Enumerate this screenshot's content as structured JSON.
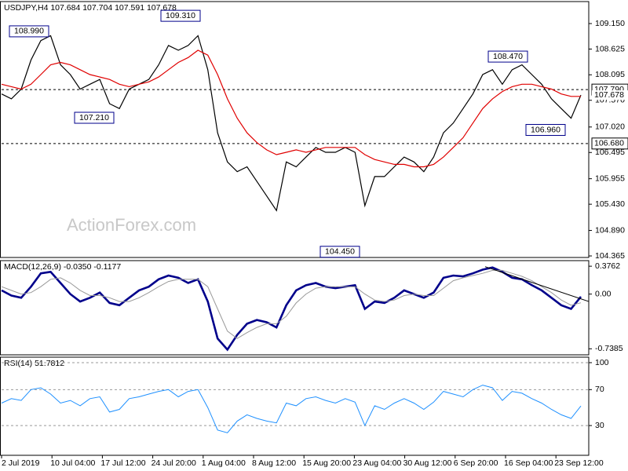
{
  "header": "USDJPY,H4  107.684 107.704 107.591 107.678",
  "watermark": "ActionForex.com",
  "x_axis": {
    "labels": [
      "2 Jul 2019",
      "10 Jul 04:00",
      "17 Jul 12:00",
      "24 Jul 20:00",
      "1 Aug 04:00",
      "8 Aug 12:00",
      "15 Aug 20:00",
      "23 Aug 04:00",
      "30 Aug 12:00",
      "6 Sep 20:00",
      "16 Sep 04:00",
      "23 Sep 12:00"
    ]
  },
  "chart_data": [
    {
      "type": "line",
      "ylim": [
        104.333,
        109.603
      ],
      "yticks": [
        {
          "value": 109.15,
          "label": "109.150"
        },
        {
          "value": 108.625,
          "label": "108.625"
        },
        {
          "value": 108.095,
          "label": "108.095"
        },
        {
          "value": 107.57,
          "label": "107.570"
        },
        {
          "value": 107.02,
          "label": "107.020"
        },
        {
          "value": 106.495,
          "label": "106.495"
        },
        {
          "value": 105.955,
          "label": "105.955"
        },
        {
          "value": 105.43,
          "label": "105.430"
        },
        {
          "value": 104.89,
          "label": "104.890"
        },
        {
          "value": 104.365,
          "label": "104.365"
        }
      ],
      "series": [
        {
          "color": "#000000",
          "width": 1.2,
          "values": [
            107.7,
            107.6,
            107.8,
            108.4,
            108.8,
            108.9,
            108.3,
            108.1,
            107.8,
            107.9,
            108.0,
            107.5,
            107.4,
            107.8,
            107.9,
            108.0,
            108.3,
            108.7,
            108.6,
            108.7,
            108.9,
            108.2,
            106.9,
            106.3,
            106.1,
            106.2,
            105.9,
            105.6,
            105.3,
            106.3,
            106.2,
            106.4,
            106.6,
            106.5,
            106.5,
            106.6,
            106.5,
            105.4,
            106.0,
            106.0,
            106.2,
            106.4,
            106.3,
            106.1,
            106.4,
            106.9,
            107.1,
            107.4,
            107.7,
            108.1,
            108.2,
            107.9,
            108.2,
            108.3,
            108.1,
            107.9,
            107.6,
            107.4,
            107.2,
            107.678
          ]
        },
        {
          "color": "#e00000",
          "width": 1.2,
          "values": [
            107.9,
            107.85,
            107.8,
            107.9,
            108.1,
            108.3,
            108.35,
            108.3,
            108.2,
            108.1,
            108.05,
            108.0,
            107.9,
            107.85,
            107.9,
            107.95,
            108.05,
            108.2,
            108.35,
            108.45,
            108.6,
            108.5,
            108.1,
            107.6,
            107.2,
            106.9,
            106.7,
            106.55,
            106.45,
            106.5,
            106.55,
            106.5,
            106.55,
            106.6,
            106.6,
            106.6,
            106.6,
            106.45,
            106.35,
            106.3,
            106.25,
            106.25,
            106.2,
            106.2,
            106.25,
            106.4,
            106.6,
            106.8,
            107.1,
            107.4,
            107.6,
            107.75,
            107.85,
            107.9,
            107.9,
            107.85,
            107.8,
            107.7,
            107.65,
            107.65
          ]
        }
      ],
      "annotations": [
        {
          "value": 108.99,
          "label": "108.990"
        },
        {
          "value": 109.31,
          "label": "109.310"
        },
        {
          "value": 107.21,
          "label": "107.210"
        },
        {
          "value": 104.45,
          "label": "104.450"
        },
        {
          "value": 108.47,
          "label": "108.470"
        },
        {
          "value": 106.96,
          "label": "106.960"
        }
      ],
      "levels": [
        {
          "value": 107.79,
          "label": "107.790"
        },
        {
          "value": 106.68,
          "label": "106.680"
        }
      ],
      "last": {
        "value": 107.678,
        "label": "107.678"
      }
    },
    {
      "type": "line",
      "title": "MACD(12,26,9) -0.0350 -0.1177",
      "ylim": [
        -0.82,
        0.4517
      ],
      "yticks": [
        0.3762,
        {
          "value": 0,
          "label": "0.00"
        },
        -0.7385
      ],
      "series": [
        {
          "color": "#00008b",
          "width": 2.6,
          "values": [
            0.05,
            -0.02,
            -0.05,
            0.1,
            0.28,
            0.3,
            0.15,
            0.0,
            -0.1,
            -0.05,
            0.02,
            -0.12,
            -0.15,
            -0.05,
            0.05,
            0.1,
            0.2,
            0.25,
            0.22,
            0.15,
            0.2,
            -0.1,
            -0.6,
            -0.75,
            -0.55,
            -0.4,
            -0.35,
            -0.38,
            -0.45,
            -0.15,
            0.05,
            0.12,
            0.15,
            0.1,
            0.08,
            0.1,
            0.12,
            -0.2,
            -0.1,
            -0.12,
            -0.05,
            0.05,
            0.0,
            -0.05,
            0.02,
            0.22,
            0.25,
            0.24,
            0.28,
            0.33,
            0.36,
            0.3,
            0.22,
            0.2,
            0.12,
            0.05,
            -0.05,
            -0.15,
            -0.2,
            -0.035
          ]
        },
        {
          "color": "#999999",
          "width": 1,
          "values": [
            0.1,
            0.05,
            0.0,
            0.02,
            0.1,
            0.2,
            0.22,
            0.15,
            0.05,
            -0.02,
            -0.02,
            -0.05,
            -0.1,
            -0.1,
            -0.05,
            0.02,
            0.1,
            0.17,
            0.2,
            0.2,
            0.2,
            0.1,
            -0.2,
            -0.5,
            -0.6,
            -0.52,
            -0.45,
            -0.4,
            -0.4,
            -0.3,
            -0.12,
            0.0,
            0.08,
            0.1,
            0.1,
            0.1,
            0.1,
            0.0,
            -0.08,
            -0.1,
            -0.08,
            -0.02,
            0.0,
            -0.02,
            -0.02,
            0.08,
            0.18,
            0.22,
            0.25,
            0.28,
            0.32,
            0.32,
            0.28,
            0.24,
            0.18,
            0.1,
            0.02,
            -0.08,
            -0.15,
            -0.1177
          ]
        }
      ]
    },
    {
      "type": "line",
      "title": "RSI(14) 51.7812",
      "ylim": [
        -3.1,
        106.1
      ],
      "yticks": [
        100,
        70,
        30
      ],
      "grid": true,
      "series": [
        {
          "color": "#1e90ff",
          "width": 1,
          "values": [
            55,
            60,
            58,
            70,
            72,
            65,
            55,
            58,
            52,
            60,
            62,
            45,
            48,
            60,
            62,
            65,
            68,
            70,
            62,
            68,
            70,
            50,
            25,
            22,
            35,
            42,
            38,
            35,
            33,
            55,
            52,
            60,
            62,
            58,
            55,
            60,
            56,
            30,
            52,
            48,
            55,
            60,
            55,
            48,
            56,
            68,
            65,
            62,
            70,
            75,
            72,
            58,
            68,
            66,
            60,
            55,
            48,
            42,
            38,
            51.7812
          ]
        }
      ]
    }
  ]
}
